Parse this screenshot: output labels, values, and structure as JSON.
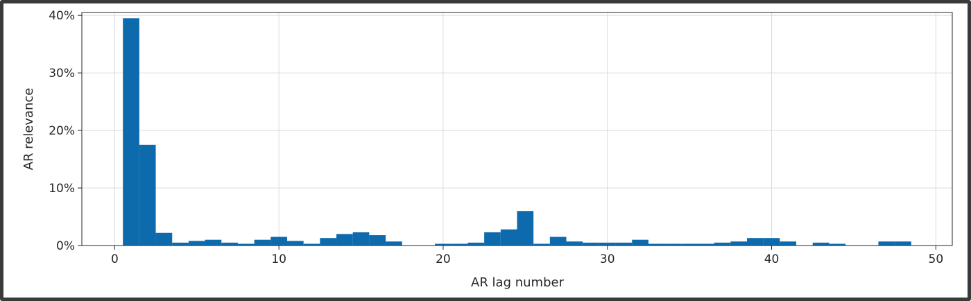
{
  "chart_data": {
    "type": "bar",
    "title": "",
    "xlabel": "AR lag number",
    "ylabel": "AR relevance",
    "xlim": [
      -2,
      51
    ],
    "ylim": [
      0,
      40.5
    ],
    "x_ticks": [
      0,
      10,
      20,
      30,
      40,
      50
    ],
    "y_ticks": [
      0,
      10,
      20,
      30,
      40
    ],
    "y_tick_suffix": "%",
    "grid": true,
    "bar_color": "#0d6aad",
    "bar_width": 1,
    "x": [
      1,
      2,
      3,
      4,
      5,
      6,
      7,
      8,
      9,
      10,
      11,
      12,
      13,
      14,
      15,
      16,
      17,
      18,
      19,
      20,
      21,
      22,
      23,
      24,
      25,
      26,
      27,
      28,
      29,
      30,
      31,
      32,
      33,
      34,
      35,
      36,
      37,
      38,
      39,
      40,
      41,
      42,
      43,
      44,
      45,
      46,
      47,
      48
    ],
    "values": [
      39.5,
      17.5,
      2.2,
      0.5,
      0.8,
      1.0,
      0.5,
      0.3,
      1.0,
      1.5,
      0.8,
      0.3,
      1.3,
      2.0,
      2.3,
      1.8,
      0.7,
      0.0,
      0.0,
      0.3,
      0.3,
      0.5,
      2.3,
      2.8,
      6.0,
      0.3,
      1.5,
      0.7,
      0.5,
      0.5,
      0.5,
      1.0,
      0.3,
      0.3,
      0.3,
      0.3,
      0.5,
      0.7,
      1.3,
      1.3,
      0.7,
      0.0,
      0.5,
      0.3,
      0.0,
      0.0,
      0.7,
      0.7
    ]
  }
}
